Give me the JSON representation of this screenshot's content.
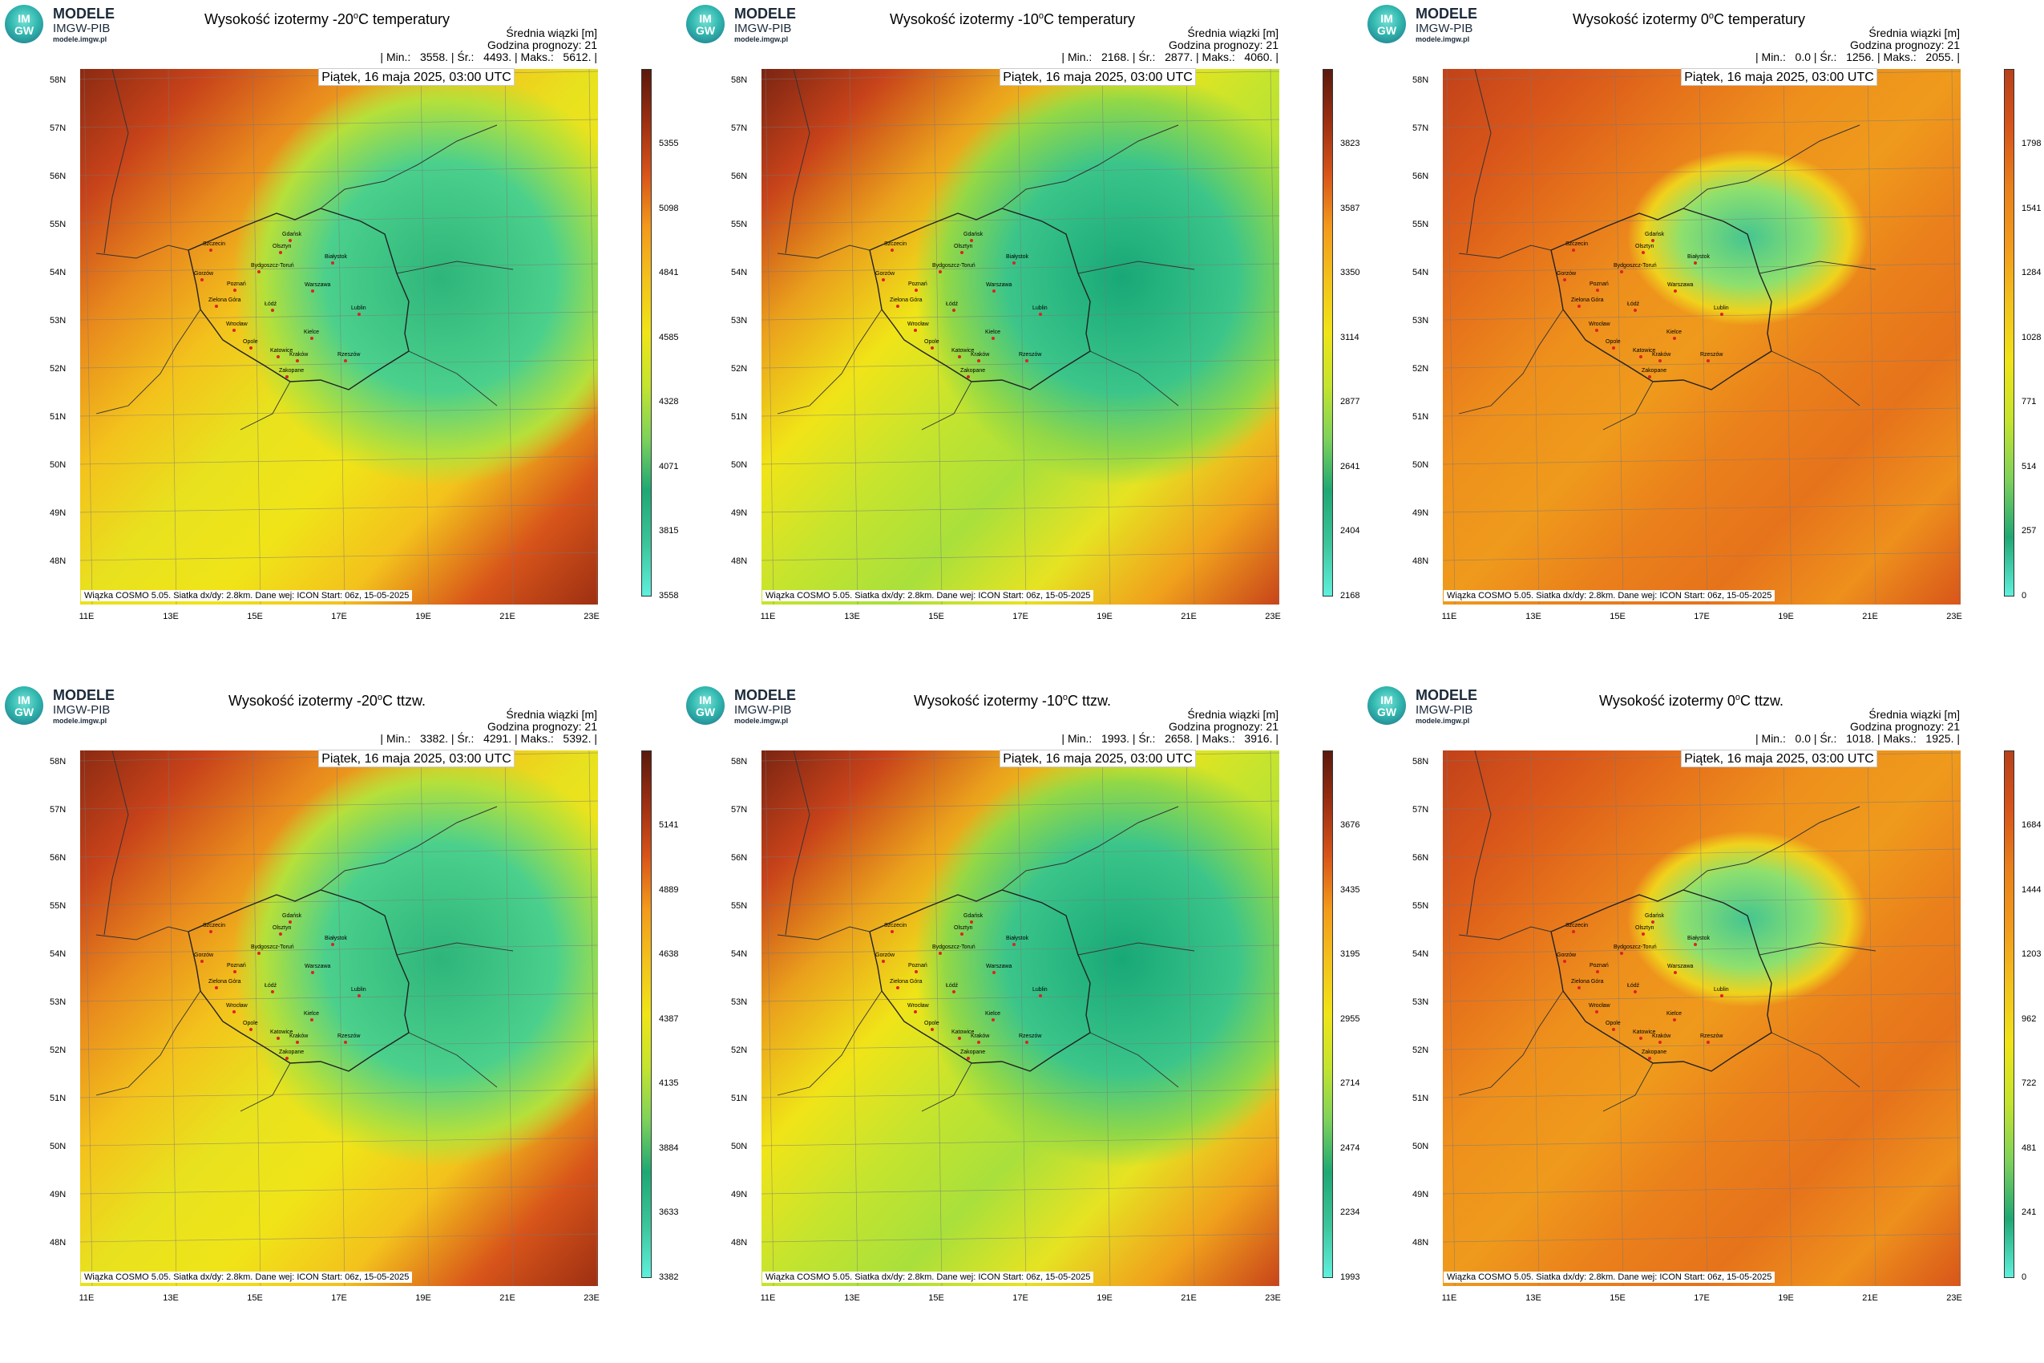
{
  "logo": {
    "disk_line1": "IM",
    "disk_line2": "GW",
    "name": "MODELE",
    "org": "IMGW-PIB",
    "url": "modele.imgw.pl"
  },
  "common": {
    "info_line1": "Średnia wiązki [m]",
    "info_line2": "Godzina prognozy: 21",
    "date": "Piątek, 16 maja 2025, 03:00 UTC",
    "footer": "Wiązka  COSMO  5.05.  Siatka  dx/dy:  2.8km.  Dane  wej:  ICON  Start:  06z,  15-05-2025",
    "lat_labels": [
      "58N",
      "57N",
      "56N",
      "55N",
      "54N",
      "53N",
      "52N",
      "51N",
      "50N",
      "49N",
      "48N"
    ],
    "lon_labels": [
      "11E",
      "13E",
      "15E",
      "17E",
      "19E",
      "21E",
      "23E"
    ]
  },
  "cities": [
    "Gdańsk",
    "Olsztyn",
    "Białystok",
    "Szczecin",
    "Bydgoszcz-Toruń",
    "Gorzów",
    "Poznań",
    "Warszawa",
    "Zielona Góra",
    "Łódź",
    "Lublin",
    "Wrocław",
    "Kielce",
    "Opole",
    "Katowice",
    "Kraków",
    "Rzeszów",
    "Zakopane"
  ],
  "panels": [
    {
      "title_pre": "Wysokość izotermy -20",
      "title_sup": "o",
      "title_post": "C temperatury",
      "min": "3558.",
      "avg": "4493.",
      "max": "5612.",
      "ticks": [
        "5355",
        "5098",
        "4841",
        "4585",
        "4328",
        "4071",
        "3815",
        "3558"
      ],
      "pattern": "cold"
    },
    {
      "title_pre": "Wysokość izotermy -10",
      "title_sup": "o",
      "title_post": "C temperatury",
      "min": "2168.",
      "avg": "2877.",
      "max": "4060.",
      "ticks": [
        "3823",
        "3587",
        "3350",
        "3114",
        "2877",
        "2641",
        "2404",
        "2168"
      ],
      "pattern": "mid"
    },
    {
      "title_pre": "Wysokość izotermy 0",
      "title_sup": "o",
      "title_post": "C temperatury",
      "min": "0.0",
      "avg": "1256.",
      "max": "2055.",
      "ticks": [
        "1798",
        "1541",
        "1284",
        "1028",
        "771",
        "514",
        "257",
        "0"
      ],
      "pattern": "warm"
    },
    {
      "title_pre": "Wysokość izotermy -20",
      "title_sup": "o",
      "title_post": "C ttzw.",
      "min": "3382.",
      "avg": "4291.",
      "max": "5392.",
      "ticks": [
        "5141",
        "4889",
        "4638",
        "4387",
        "4135",
        "3884",
        "3633",
        "3382"
      ],
      "pattern": "cold"
    },
    {
      "title_pre": "Wysokość izotermy -10",
      "title_sup": "o",
      "title_post": "C ttzw.",
      "min": "1993.",
      "avg": "2658.",
      "max": "3916.",
      "ticks": [
        "3676",
        "3435",
        "3195",
        "2955",
        "2714",
        "2474",
        "2234",
        "1993"
      ],
      "pattern": "mid"
    },
    {
      "title_pre": "Wysokość izotermy 0",
      "title_sup": "o",
      "title_post": "C ttzw.",
      "min": "0.0",
      "avg": "1018.",
      "max": "1925.",
      "ticks": [
        "1684",
        "1444",
        "1203",
        "962",
        "722",
        "481",
        "241",
        "0"
      ],
      "pattern": "warm"
    }
  ]
}
